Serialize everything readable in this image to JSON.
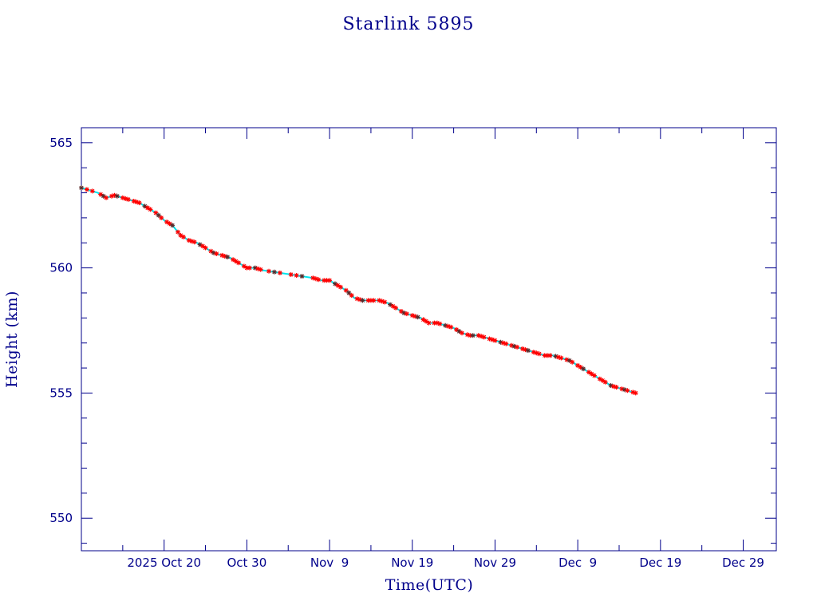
{
  "chart_data": {
    "type": "scatter",
    "title": "Starlink 5895",
    "xlabel": "Time(UTC)",
    "ylabel": "Height (km)",
    "x_scale": "time",
    "xlim": [
      "2025-10-10",
      "2026-01-02"
    ],
    "ylim": [
      548.7,
      565.6
    ],
    "x_ticks": [
      {
        "date": "2025-10-20",
        "label": "2025 Oct 20"
      },
      {
        "date": "2025-10-30",
        "label": "Oct 30"
      },
      {
        "date": "2025-11-09",
        "label": "Nov  9"
      },
      {
        "date": "2025-11-19",
        "label": "Nov 19"
      },
      {
        "date": "2025-11-29",
        "label": "Nov 29"
      },
      {
        "date": "2025-12-09",
        "label": "Dec  9"
      },
      {
        "date": "2025-12-19",
        "label": "Dec 19"
      },
      {
        "date": "2025-12-29",
        "label": "Dec 29"
      }
    ],
    "y_ticks": [
      550,
      555,
      560,
      565
    ],
    "series_style": {
      "marker": "red-star",
      "line_color": "#00e5ee",
      "marker_color": "#ff0000"
    },
    "points": [
      [
        "2025-10-10",
        563.2
      ],
      [
        "2025-10-12",
        563.0
      ],
      [
        "2025-10-13",
        562.8
      ],
      [
        "2025-10-14",
        562.9
      ],
      [
        "2025-10-15",
        562.8
      ],
      [
        "2025-10-16",
        562.7
      ],
      [
        "2025-10-17",
        562.6
      ],
      [
        "2025-10-18",
        562.4
      ],
      [
        "2025-10-19",
        562.2
      ],
      [
        "2025-10-20",
        561.9
      ],
      [
        "2025-10-21",
        561.7
      ],
      [
        "2025-10-22",
        561.3
      ],
      [
        "2025-10-23",
        561.1
      ],
      [
        "2025-10-24",
        561.0
      ],
      [
        "2025-10-25",
        560.8
      ],
      [
        "2025-10-26",
        560.6
      ],
      [
        "2025-10-27",
        560.5
      ],
      [
        "2025-10-28",
        560.4
      ],
      [
        "2025-10-29",
        560.2
      ],
      [
        "2025-10-30",
        560.0
      ],
      [
        "2025-10-31",
        560.0
      ],
      [
        "2025-11-01",
        559.9
      ],
      [
        "2025-11-03",
        559.8
      ],
      [
        "2025-11-05",
        559.7
      ],
      [
        "2025-11-07",
        559.6
      ],
      [
        "2025-11-08",
        559.5
      ],
      [
        "2025-11-09",
        559.5
      ],
      [
        "2025-11-10",
        559.3
      ],
      [
        "2025-11-11",
        559.1
      ],
      [
        "2025-11-12",
        558.8
      ],
      [
        "2025-11-13",
        558.7
      ],
      [
        "2025-11-14",
        558.7
      ],
      [
        "2025-11-15",
        558.7
      ],
      [
        "2025-11-16",
        558.6
      ],
      [
        "2025-11-17",
        558.4
      ],
      [
        "2025-11-18",
        558.2
      ],
      [
        "2025-11-19",
        558.1
      ],
      [
        "2025-11-20",
        558.0
      ],
      [
        "2025-11-21",
        557.8
      ],
      [
        "2025-11-22",
        557.8
      ],
      [
        "2025-11-23",
        557.7
      ],
      [
        "2025-11-24",
        557.6
      ],
      [
        "2025-11-25",
        557.4
      ],
      [
        "2025-11-26",
        557.3
      ],
      [
        "2025-11-27",
        557.3
      ],
      [
        "2025-11-28",
        557.2
      ],
      [
        "2025-11-29",
        557.1
      ],
      [
        "2025-11-30",
        557.0
      ],
      [
        "2025-12-01",
        556.9
      ],
      [
        "2025-12-02",
        556.8
      ],
      [
        "2025-12-03",
        556.7
      ],
      [
        "2025-12-04",
        556.6
      ],
      [
        "2025-12-05",
        556.5
      ],
      [
        "2025-12-06",
        556.5
      ],
      [
        "2025-12-07",
        556.4
      ],
      [
        "2025-12-08",
        556.3
      ],
      [
        "2025-12-09",
        556.1
      ],
      [
        "2025-12-10",
        555.9
      ],
      [
        "2025-12-11",
        555.7
      ],
      [
        "2025-12-12",
        555.5
      ],
      [
        "2025-12-13",
        555.3
      ],
      [
        "2025-12-14",
        555.2
      ],
      [
        "2025-12-15",
        555.1
      ],
      [
        "2025-12-16",
        555.0
      ]
    ]
  }
}
